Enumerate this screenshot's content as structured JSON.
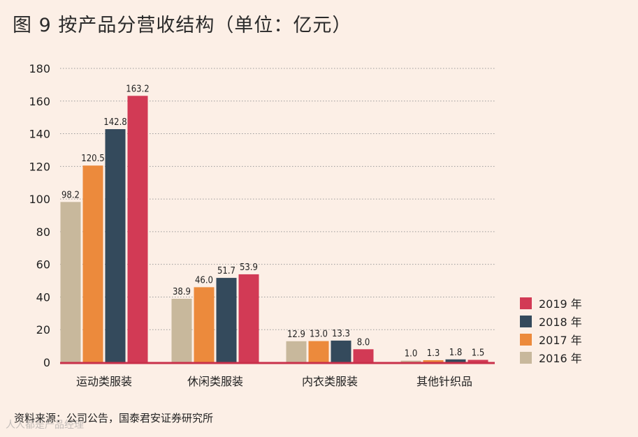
{
  "title": "图 9  按产品分营收结构（单位：亿元）",
  "source": "资料来源：公司公告，国泰君安证券研究所",
  "watermark": "人人都是产品经理",
  "chart_data": {
    "type": "bar",
    "title": "图 9  按产品分营收结构（单位：亿元）",
    "xlabel": "",
    "ylabel": "",
    "ylim": [
      0,
      180
    ],
    "yticks": [
      0,
      20,
      40,
      60,
      80,
      100,
      120,
      140,
      160,
      180
    ],
    "grid": "horizontal dotted",
    "legend_position": "right",
    "categories": [
      "运动类服装",
      "休闲类服装",
      "内衣类服装",
      "其他针织品"
    ],
    "series": [
      {
        "name": "2016 年",
        "color": "#c8b89c",
        "values": [
          98.2,
          38.9,
          12.9,
          1.0
        ],
        "labels": [
          "98.2",
          "38.9",
          "12.9",
          "1.0"
        ]
      },
      {
        "name": "2017 年",
        "color": "#ec8a3c",
        "values": [
          120.5,
          46.0,
          13.0,
          1.3
        ],
        "labels": [
          "120.5",
          "46.0",
          "13.0",
          "1.3"
        ]
      },
      {
        "name": "2018 年",
        "color": "#344a5c",
        "values": [
          142.8,
          51.7,
          13.3,
          1.8
        ],
        "labels": [
          "142.8",
          "51.7",
          "13.3",
          "1.8"
        ]
      },
      {
        "name": "2019 年",
        "color": "#d23a55",
        "values": [
          163.2,
          53.9,
          8.0,
          1.5
        ],
        "labels": [
          "163.2",
          "53.9",
          "8.0",
          "1.5"
        ]
      }
    ]
  },
  "colors": {
    "background": "#fcefe6",
    "baseline": "#c9304a",
    "grid": "#9a9a9a"
  }
}
